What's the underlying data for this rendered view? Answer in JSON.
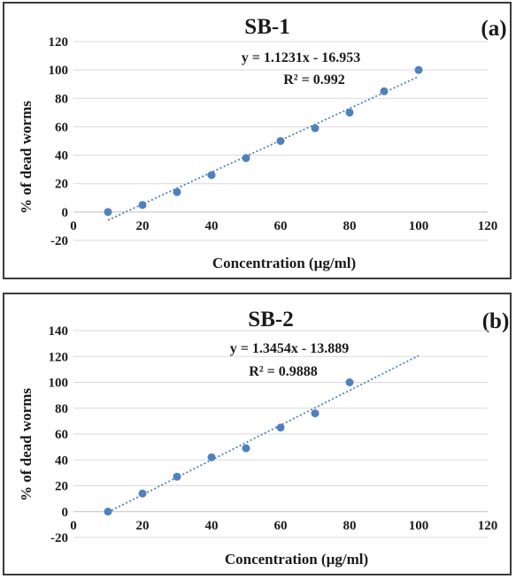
{
  "chart_data": [
    {
      "type": "scatter",
      "title": "SB-1",
      "panel_label": "(a)",
      "xlabel": "Concentration (µg/ml)",
      "ylabel": "% of dead worms",
      "xlim": [
        0,
        120
      ],
      "ylim": [
        -20,
        120
      ],
      "xticks": [
        0,
        20,
        40,
        60,
        80,
        100,
        120
      ],
      "yticks": [
        -20,
        0,
        20,
        40,
        60,
        80,
        100,
        120
      ],
      "grid": "horizontal",
      "x": [
        10,
        20,
        30,
        40,
        50,
        60,
        70,
        80,
        90,
        100
      ],
      "y": [
        0,
        5,
        14,
        26,
        38,
        50,
        59,
        70,
        85,
        100
      ],
      "trendline": {
        "type": "linear",
        "slope": 1.1231,
        "intercept": -16.953,
        "x_range": [
          10,
          100
        ]
      },
      "equation": "y = 1.1231x - 16.953",
      "r_squared": "R² = 0.992",
      "point_color": "#4f81bd"
    },
    {
      "type": "scatter",
      "title": "SB-2",
      "panel_label": "(b)",
      "xlabel": "Concentration (µg/ml)",
      "ylabel": "% of dead worms",
      "xlim": [
        0,
        120
      ],
      "ylim": [
        -20,
        140
      ],
      "xticks": [
        0,
        20,
        40,
        60,
        80,
        100,
        120
      ],
      "yticks": [
        -20,
        0,
        20,
        40,
        60,
        80,
        100,
        120,
        140
      ],
      "grid": "horizontal",
      "x": [
        10,
        20,
        30,
        40,
        50,
        60,
        70,
        80
      ],
      "y": [
        0,
        14,
        27,
        42,
        49,
        65,
        76,
        100
      ],
      "trendline": {
        "type": "linear",
        "slope": 1.3454,
        "intercept": -13.889,
        "x_range": [
          10,
          100
        ]
      },
      "equation": "y = 1.3454x - 13.889",
      "r_squared": "R² = 0.9888",
      "point_color": "#4f81bd"
    }
  ]
}
